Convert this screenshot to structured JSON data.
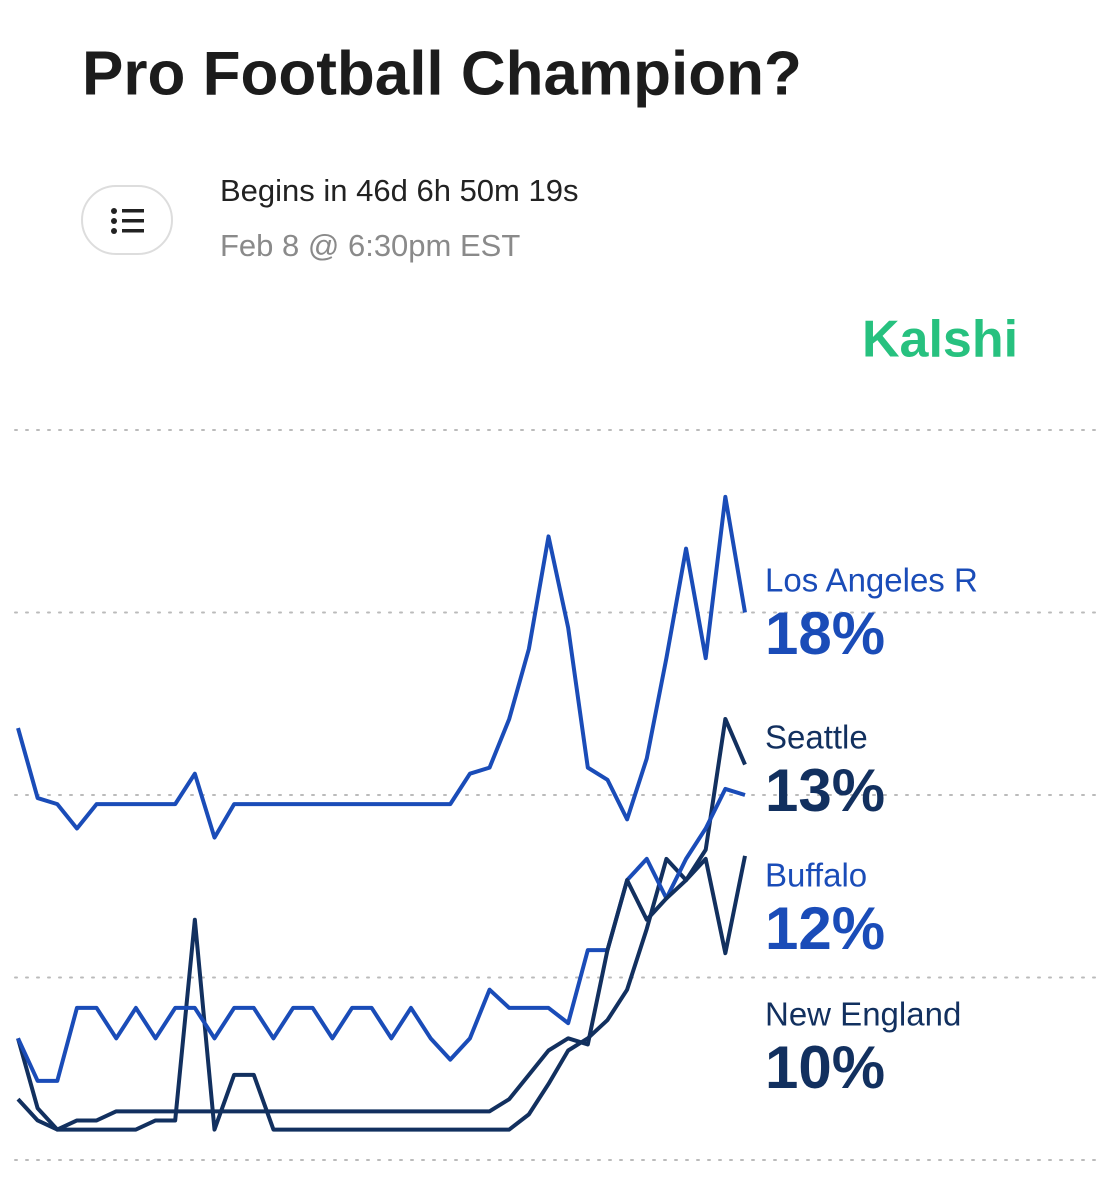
{
  "header": {
    "title": "Pro Football Champion?",
    "countdown": "Begins in 46d 6h 50m 19s",
    "date": "Feb 8 @ 6:30pm EST"
  },
  "brand": "Kalshi",
  "chart_data": {
    "type": "line",
    "ylim": [
      0,
      24
    ],
    "yticks": [
      0,
      6,
      12,
      18,
      24
    ],
    "grid": true,
    "series": [
      {
        "name": "Los Angeles R",
        "color": "#1a4cb8",
        "end_label": "18%",
        "values": [
          14.2,
          11.9,
          11.7,
          10.9,
          11.7,
          11.7,
          11.7,
          11.7,
          11.7,
          12.7,
          10.6,
          11.7,
          11.7,
          11.7,
          11.7,
          11.7,
          11.7,
          11.7,
          11.7,
          11.7,
          11.7,
          11.7,
          11.7,
          12.7,
          12.9,
          14.5,
          16.8,
          20.5,
          17.5,
          12.9,
          12.5,
          11.2,
          13.2,
          16.5,
          20.1,
          16.5,
          21.8,
          18
        ]
      },
      {
        "name": "Seattle",
        "color": "#12305f",
        "end_label": "13%",
        "values": [
          4.0,
          1.7,
          1.0,
          1.0,
          1.0,
          1.0,
          1.0,
          1.3,
          1.3,
          7.9,
          1.0,
          2.8,
          2.8,
          1.0,
          1.0,
          1.0,
          1.0,
          1.0,
          1.0,
          1.0,
          1.0,
          1.0,
          1.0,
          1.0,
          1.0,
          1.0,
          1.5,
          2.5,
          3.6,
          4.0,
          4.6,
          5.6,
          7.6,
          9.9,
          9.2,
          10.2,
          14.5,
          13
        ]
      },
      {
        "name": "Buffalo",
        "color": "#1a4cb8",
        "end_label": "12%",
        "values": [
          4.0,
          2.6,
          2.6,
          5.0,
          5.0,
          4.0,
          5.0,
          4.0,
          5.0,
          5.0,
          4.0,
          5.0,
          5.0,
          4.0,
          5.0,
          5.0,
          4.0,
          5.0,
          5.0,
          4.0,
          5.0,
          4.0,
          3.3,
          4.0,
          5.6,
          5.0,
          5.0,
          5.0,
          4.5,
          6.9,
          6.9,
          9.2,
          9.9,
          8.6,
          9.9,
          10.9,
          12.2,
          12
        ]
      },
      {
        "name": "New England",
        "color": "#12305f",
        "end_label": "10%",
        "values": [
          2.0,
          1.3,
          1.0,
          1.3,
          1.3,
          1.6,
          1.6,
          1.6,
          1.6,
          1.6,
          1.6,
          1.6,
          1.6,
          1.6,
          1.6,
          1.6,
          1.6,
          1.6,
          1.6,
          1.6,
          1.6,
          1.6,
          1.6,
          1.6,
          1.6,
          2.0,
          2.8,
          3.6,
          4.0,
          3.8,
          6.9,
          9.2,
          7.9,
          8.6,
          9.2,
          9.9,
          6.8,
          10
        ]
      }
    ]
  }
}
